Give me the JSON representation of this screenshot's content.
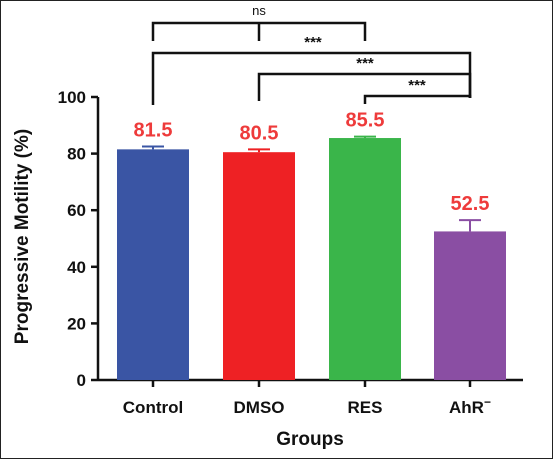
{
  "chart_data": {
    "type": "bar",
    "title": "",
    "xlabel": "Groups",
    "ylabel": "Progressive Motility (%)",
    "ylim": [
      0,
      100
    ],
    "yticks": [
      0,
      20,
      40,
      60,
      80,
      100
    ],
    "categories": [
      "Control",
      "DMSO",
      "RES",
      "AhR"
    ],
    "category_superscripts": [
      "",
      "",
      "",
      "−"
    ],
    "values": [
      81.5,
      80.5,
      85.5,
      52.5
    ],
    "errors": [
      1.0,
      1.0,
      0.5,
      4.0
    ],
    "data_labels": [
      "81.5",
      "80.5",
      "85.5",
      "52.5"
    ],
    "bar_colors": [
      "#3a55a4",
      "#ee2124",
      "#3ab54a",
      "#8a4ea3"
    ],
    "data_label_color": "#ee3b3b",
    "grid": false,
    "legend": "none",
    "comparisons": [
      {
        "from": 0,
        "to": 2,
        "label": "ns"
      },
      {
        "from": 0,
        "to": 3,
        "label": "***"
      },
      {
        "from": 1,
        "to": 3,
        "label": "***"
      },
      {
        "from": 2,
        "to": 3,
        "label": "***"
      }
    ]
  }
}
